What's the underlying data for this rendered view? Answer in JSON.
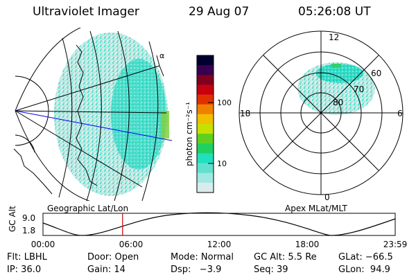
{
  "header": {
    "title": "Ultraviolet Imager",
    "date": "29 Aug 07",
    "time": "05:26:08 UT"
  },
  "colorbar": {
    "unit_label": "photon cm⁻²s⁻¹",
    "ticks": [
      "100",
      "10"
    ],
    "colors": [
      "#000030",
      "#3a0050",
      "#800020",
      "#c80010",
      "#e03000",
      "#f08000",
      "#f0c000",
      "#c8e000",
      "#60d020",
      "#20d060",
      "#20e0c0",
      "#60e0d0",
      "#a0e8e0",
      "#d8ecec"
    ]
  },
  "left_map": {
    "caption": "Geographic Lat/Lon",
    "marker": "α"
  },
  "right_map": {
    "caption": "Apex MLat/MLT",
    "mlt_labels": [
      "12",
      "18",
      "6",
      "0"
    ],
    "mlat_labels": [
      "80",
      "70",
      "60"
    ]
  },
  "altitude_plot": {
    "ylabel": "GC Alt",
    "yticks": [
      "9.0",
      "1.8"
    ],
    "xticks": [
      "00:00",
      "06:00",
      "12:00",
      "18:00",
      "23:59"
    ],
    "current_time_fraction": 0.226,
    "marker_color": "#cc0000"
  },
  "status": {
    "filter": "Flt: LBHL",
    "door": "Door: Open",
    "mode": "Mode: Normal",
    "gc_alt": "GC Alt: 5.5 Re",
    "glat": "GLat: −66.5",
    "ip": "IP: 36.0",
    "gain": "Gain: 14",
    "dsp": "Dsp:   −3.9",
    "seq": "Seq: 39",
    "glon": "GLon:  94.9"
  }
}
